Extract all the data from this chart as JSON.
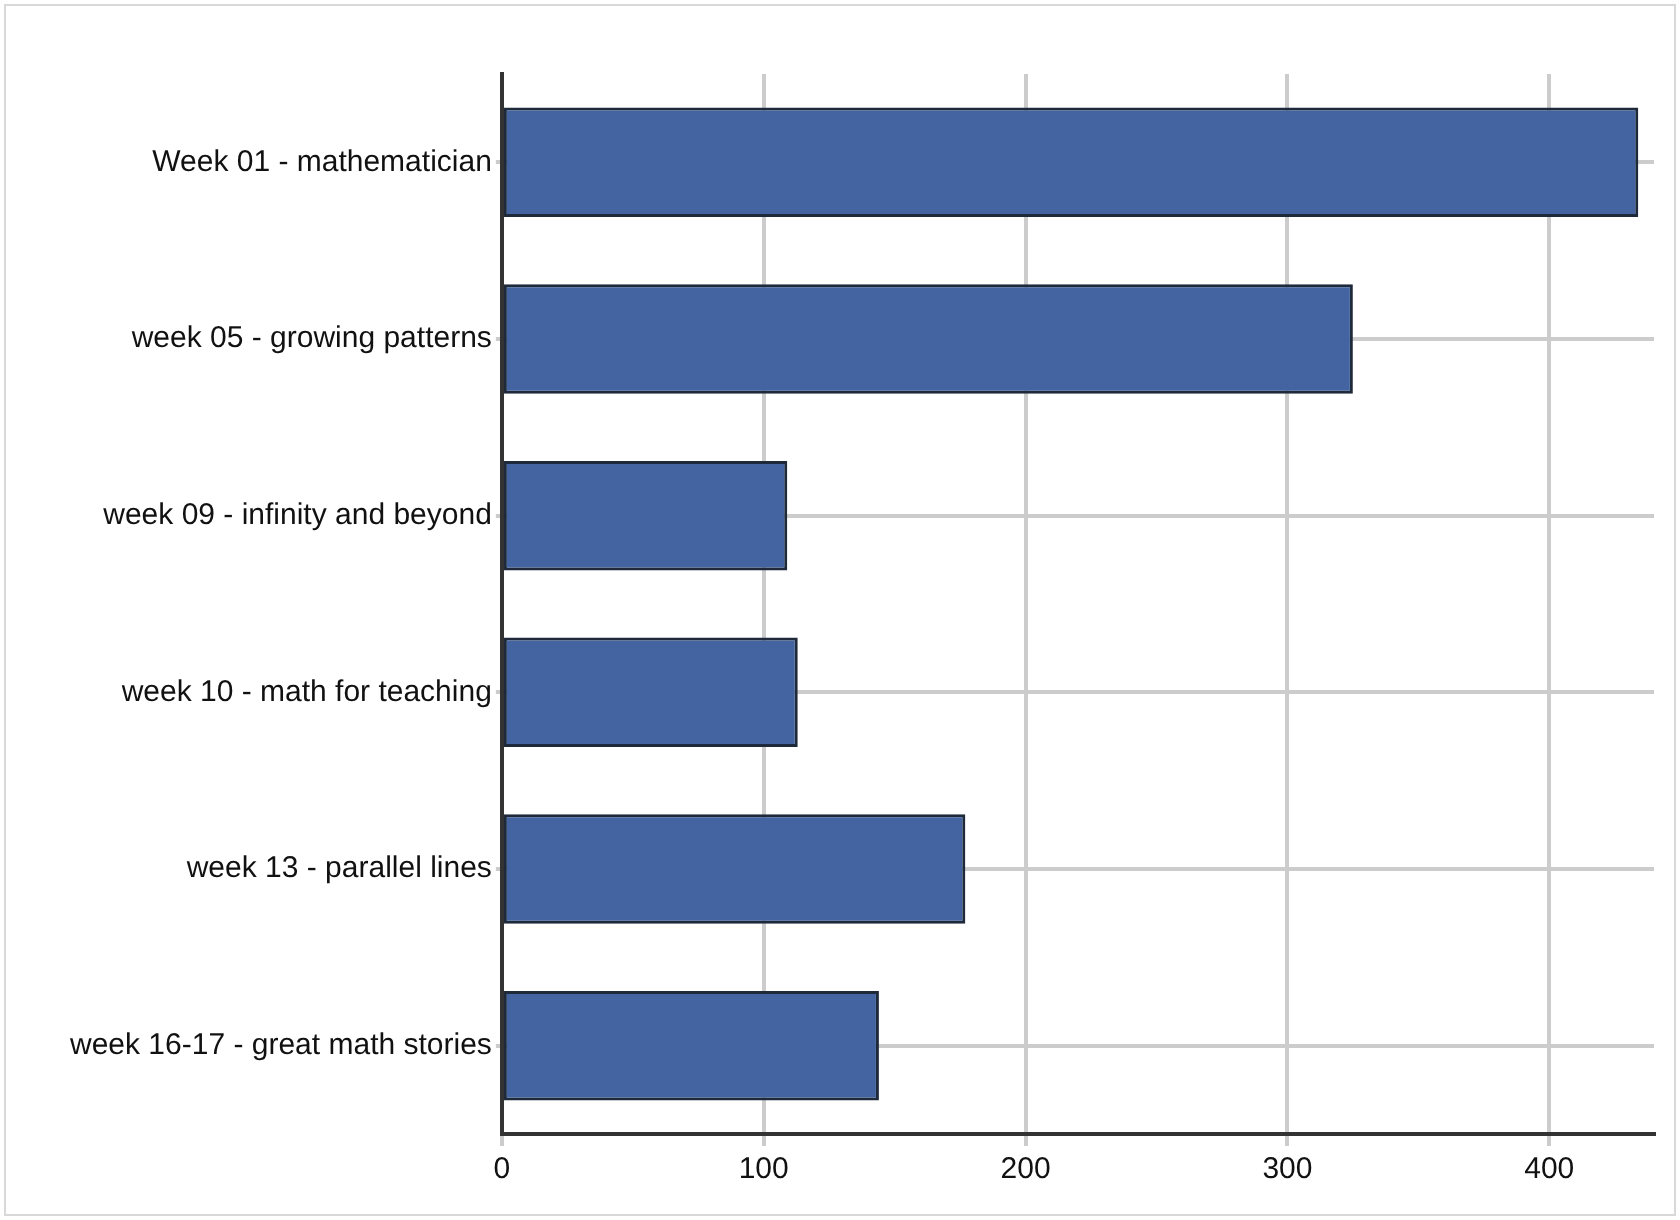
{
  "chart_data": {
    "type": "bar",
    "orientation": "horizontal",
    "categories": [
      "Week 01 - mathematician",
      "week 05 - growing patterns",
      "week 09 - infinity and beyond",
      "week 10 - math for teaching",
      "week 13 - parallel lines",
      "week 16-17 - great math stories"
    ],
    "values": [
      434,
      325,
      109,
      113,
      177,
      144
    ],
    "color": "#4364a0",
    "xlim": [
      0,
      440
    ],
    "xticks": [
      0,
      100,
      200,
      300,
      400
    ],
    "grid": true,
    "legend": false
  }
}
